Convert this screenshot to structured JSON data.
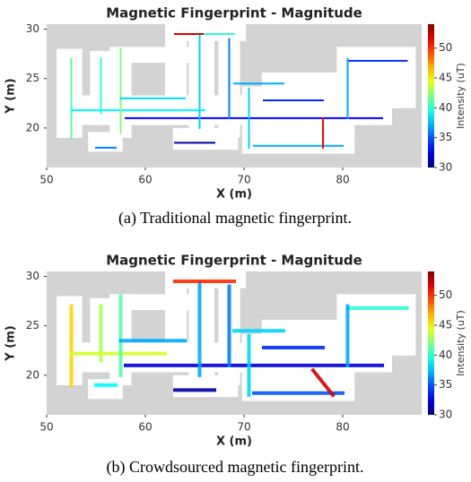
{
  "chart_data": [
    {
      "type": "path",
      "title": "Magnetic Fingerprint - Magnitude",
      "xlabel": "X (m)",
      "ylabel": "Y (m)",
      "xlim": [
        50,
        88
      ],
      "ylim": [
        16,
        30.5
      ],
      "xticks": [
        50,
        60,
        70,
        80
      ],
      "yticks": [
        20,
        25,
        30
      ],
      "colormap": "jet",
      "colorbar": {
        "label": "Intensity (uT)",
        "lim": [
          30,
          54
        ],
        "ticks": [
          30,
          35,
          40,
          45,
          50
        ]
      },
      "segments": [
        {
          "x": [
            52.5,
            52.5
          ],
          "y": [
            27,
            19
          ],
          "value": 41
        },
        {
          "x": [
            55.5,
            55.5
          ],
          "y": [
            27,
            21.5
          ],
          "value": 40
        },
        {
          "x": [
            52.5,
            66
          ],
          "y": [
            21.8,
            21.8
          ],
          "value": 39
        },
        {
          "x": [
            57.5,
            57.5
          ],
          "y": [
            28,
            19.5
          ],
          "value": 42
        },
        {
          "x": [
            57.5,
            64
          ],
          "y": [
            23,
            23
          ],
          "value": 38
        },
        {
          "x": [
            58,
            84
          ],
          "y": [
            21,
            21
          ],
          "value": 33
        },
        {
          "x": [
            65.5,
            65.5
          ],
          "y": [
            29.5,
            20
          ],
          "value": 38
        },
        {
          "x": [
            63,
            66
          ],
          "y": [
            29.5,
            29.5
          ],
          "value": 52
        },
        {
          "x": [
            66,
            69
          ],
          "y": [
            29.5,
            29.5
          ],
          "value": 40
        },
        {
          "x": [
            68.5,
            68.5
          ],
          "y": [
            29,
            21
          ],
          "value": 36
        },
        {
          "x": [
            69,
            74
          ],
          "y": [
            24.5,
            24.5
          ],
          "value": 37
        },
        {
          "x": [
            70.5,
            70.5
          ],
          "y": [
            24,
            18
          ],
          "value": 38
        },
        {
          "x": [
            71,
            80
          ],
          "y": [
            18.2,
            18.2
          ],
          "value": 37
        },
        {
          "x": [
            78,
            78
          ],
          "y": [
            21,
            18
          ],
          "value": 51
        },
        {
          "x": [
            80.5,
            86.5
          ],
          "y": [
            26.8,
            26.8
          ],
          "value": 34
        },
        {
          "x": [
            80.5,
            80.5
          ],
          "y": [
            27,
            21
          ],
          "value": 37
        },
        {
          "x": [
            72,
            78
          ],
          "y": [
            22.8,
            22.8
          ],
          "value": 34
        },
        {
          "x": [
            63,
            67
          ],
          "y": [
            18.5,
            18.5
          ],
          "value": 31
        },
        {
          "x": [
            55,
            57
          ],
          "y": [
            18,
            18
          ],
          "value": 36
        }
      ]
    },
    {
      "type": "path",
      "title": "Magnetic Fingerprint - Magnitude",
      "xlabel": "X (m)",
      "ylabel": "Y (m)",
      "xlim": [
        50,
        88
      ],
      "ylim": [
        16,
        30.5
      ],
      "xticks": [
        50,
        60,
        70,
        80
      ],
      "yticks": [
        20,
        25,
        30
      ],
      "colormap": "jet",
      "colorbar": {
        "label": "Intensity (uT)",
        "lim": [
          30,
          54
        ],
        "ticks": [
          30,
          35,
          40,
          45,
          50
        ]
      },
      "segments": [
        {
          "x": [
            52.5,
            52.5
          ],
          "y": [
            27,
            19
          ],
          "value": 46
        },
        {
          "x": [
            55.5,
            55.5
          ],
          "y": [
            27,
            21.5
          ],
          "value": 43
        },
        {
          "x": [
            52.5,
            62
          ],
          "y": [
            22.2,
            22.2
          ],
          "value": 44
        },
        {
          "x": [
            57.5,
            57.5
          ],
          "y": [
            28,
            20
          ],
          "value": 41
        },
        {
          "x": [
            57.5,
            64
          ],
          "y": [
            23.5,
            23.5
          ],
          "value": 37
        },
        {
          "x": [
            58,
            84
          ],
          "y": [
            21,
            21
          ],
          "value": 32
        },
        {
          "x": [
            65.5,
            65.5
          ],
          "y": [
            29.5,
            20
          ],
          "value": 37
        },
        {
          "x": [
            63,
            69
          ],
          "y": [
            29.5,
            29.5
          ],
          "value": 50
        },
        {
          "x": [
            68.5,
            68.5
          ],
          "y": [
            29,
            21
          ],
          "value": 36
        },
        {
          "x": [
            69,
            74
          ],
          "y": [
            24.5,
            24.5
          ],
          "value": 38
        },
        {
          "x": [
            70.5,
            70.5
          ],
          "y": [
            24,
            18
          ],
          "value": 38
        },
        {
          "x": [
            71,
            80
          ],
          "y": [
            18.2,
            18.2
          ],
          "value": 35
        },
        {
          "x": [
            77,
            79
          ],
          "y": [
            20.5,
            18
          ],
          "value": 52
        },
        {
          "x": [
            80.5,
            86.5
          ],
          "y": [
            26.8,
            26.8
          ],
          "value": 40
        },
        {
          "x": [
            80.5,
            80.5
          ],
          "y": [
            27,
            21
          ],
          "value": 37
        },
        {
          "x": [
            72,
            78
          ],
          "y": [
            22.8,
            22.8
          ],
          "value": 34
        },
        {
          "x": [
            63,
            67
          ],
          "y": [
            18.5,
            18.5
          ],
          "value": 31
        },
        {
          "x": [
            55,
            57
          ],
          "y": [
            19,
            19
          ],
          "value": 39
        }
      ]
    }
  ],
  "captions": [
    "(a) Traditional magnetic fingerprint.",
    "(b) Crowdsourced magnetic fingerprint."
  ]
}
